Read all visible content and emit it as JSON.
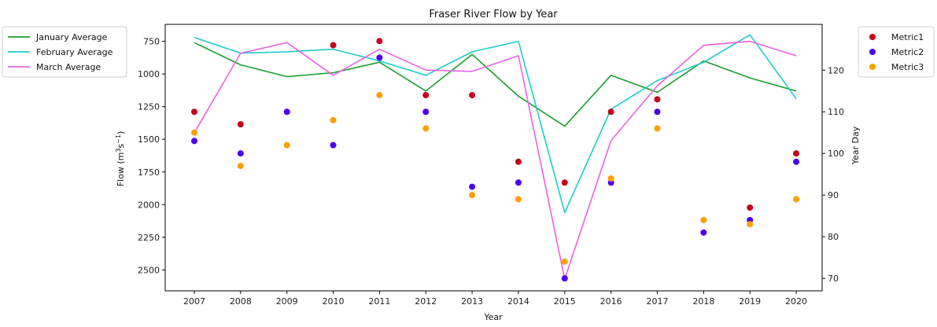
{
  "chart_data": {
    "type": "line",
    "title": "Fraser River Flow by Year",
    "xlabel": "Year",
    "ylabel_left_base": "Flow (m",
    "ylabel_left_sup1": "3",
    "ylabel_left_mid": "s",
    "ylabel_left_sup2": "−1",
    "ylabel_left_end": ")",
    "ylabel_right": "Year Day",
    "x": [
      2007,
      2008,
      2009,
      2010,
      2011,
      2012,
      2013,
      2014,
      2015,
      2016,
      2017,
      2018,
      2019,
      2020
    ],
    "x_tick_labels": [
      "2007",
      "2008",
      "2009",
      "2010",
      "2011",
      "2012",
      "2013",
      "2014",
      "2015",
      "2016",
      "2017",
      "2018",
      "2019",
      "2020"
    ],
    "left_axis": {
      "ylim": [
        2660,
        620
      ],
      "inverted": true,
      "ticks": [
        750,
        1000,
        1250,
        1500,
        1750,
        2000,
        2250,
        2500
      ]
    },
    "right_axis": {
      "ylim": [
        67,
        131
      ],
      "ticks": [
        70,
        80,
        90,
        100,
        110,
        120
      ]
    },
    "line_series": [
      {
        "name": "January Average",
        "color": "#1a9e2e",
        "values": [
          760,
          930,
          1020,
          990,
          910,
          1130,
          850,
          1170,
          1400,
          1010,
          1140,
          900,
          1030,
          1130
        ]
      },
      {
        "name": "February Average",
        "color": "#1ecbcb",
        "values": [
          720,
          840,
          830,
          810,
          900,
          1010,
          830,
          750,
          2060,
          1270,
          1050,
          910,
          700,
          1190
        ]
      },
      {
        "name": "March Average",
        "color": "#e863e0",
        "values": [
          1450,
          840,
          760,
          1010,
          810,
          970,
          980,
          860,
          2570,
          1510,
          1090,
          780,
          750,
          860
        ]
      }
    ],
    "scatter_series": [
      {
        "name": "Metric1",
        "color": "#c4001a",
        "values": [
          110,
          107,
          null,
          126,
          127,
          114,
          114,
          98,
          93,
          110,
          113,
          null,
          87,
          100
        ]
      },
      {
        "name": "Metric2",
        "color": "#4b00f0",
        "values": [
          103,
          100,
          110,
          102,
          123,
          110,
          92,
          93,
          70,
          93,
          110,
          81,
          84,
          98
        ]
      },
      {
        "name": "Metric3",
        "color": "#ff9e00",
        "values": [
          105,
          97,
          102,
          108,
          114,
          106,
          90,
          89,
          74,
          94,
          106,
          84,
          83,
          89
        ]
      }
    ],
    "legend_left_placement": "outside-left-top",
    "legend_right_placement": "outside-right-top",
    "grid": false
  }
}
